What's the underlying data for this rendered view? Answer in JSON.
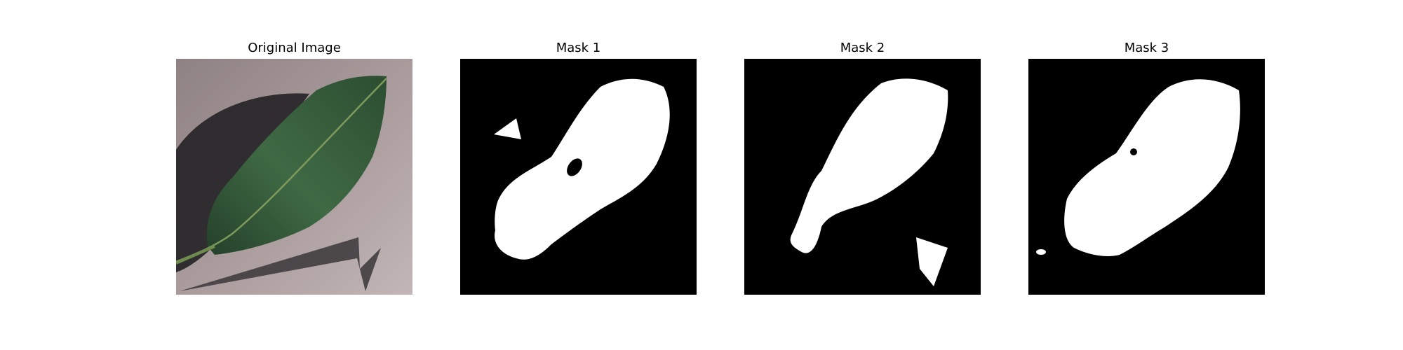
{
  "figure": {
    "panels": [
      {
        "title": "Original Image",
        "content": "photo of a green leaf with its shadow on a grey surface"
      },
      {
        "title": "Mask 1",
        "content": "binary mask: white leaf region with hole, black background"
      },
      {
        "title": "Mask 2",
        "content": "binary mask: white leaf region plus shadow fragment"
      },
      {
        "title": "Mask 3",
        "content": "binary mask: white leaf region, black background"
      }
    ]
  },
  "colors": {
    "mask_foreground": "#ffffff",
    "mask_background": "#000000",
    "photo_background": "#a99a9b",
    "leaf_dark": "#2a4a2e",
    "leaf_mid": "#3f6a44",
    "shadow": "#2b2b2e"
  }
}
